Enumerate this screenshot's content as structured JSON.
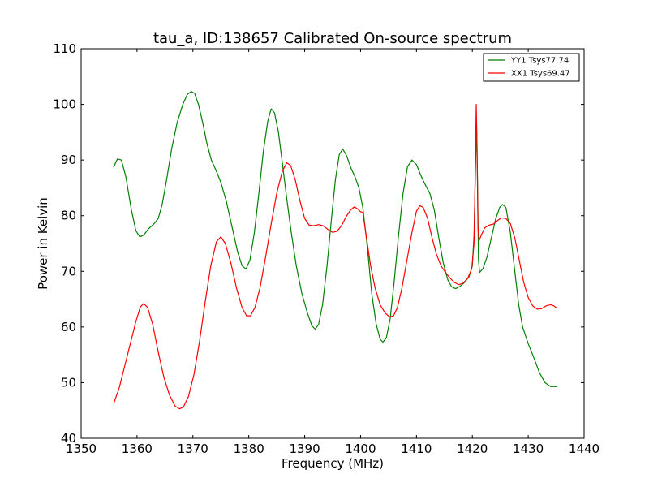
{
  "chart_data": {
    "type": "line",
    "title": "tau_a, ID:138657 Calibrated On-source spectrum",
    "xlabel": "Frequency (MHz)",
    "ylabel": "Power in Kelvin",
    "xlim": [
      1350,
      1440
    ],
    "ylim": [
      40,
      110
    ],
    "xticks": [
      1350,
      1360,
      1370,
      1380,
      1390,
      1400,
      1410,
      1420,
      1430,
      1440
    ],
    "yticks": [
      40,
      50,
      60,
      70,
      80,
      90,
      100,
      110
    ],
    "grid": false,
    "legend_position": "top-right",
    "series": [
      {
        "name": "YY1 Tsys77.74",
        "color": "#008000",
        "points": [
          [
            1355.8,
            88.7
          ],
          [
            1356.5,
            90.2
          ],
          [
            1357.2,
            90.0
          ],
          [
            1358.0,
            87.0
          ],
          [
            1359.0,
            81.0
          ],
          [
            1359.8,
            77.3
          ],
          [
            1360.5,
            76.2
          ],
          [
            1361.2,
            76.5
          ],
          [
            1362.0,
            77.6
          ],
          [
            1363.0,
            78.5
          ],
          [
            1363.8,
            79.5
          ],
          [
            1364.5,
            82.0
          ],
          [
            1365.3,
            86.5
          ],
          [
            1366.2,
            92.0
          ],
          [
            1367.2,
            96.8
          ],
          [
            1368.2,
            100.0
          ],
          [
            1369.0,
            101.8
          ],
          [
            1369.7,
            102.3
          ],
          [
            1370.3,
            102.0
          ],
          [
            1371.0,
            100.0
          ],
          [
            1371.8,
            96.5
          ],
          [
            1372.5,
            93.0
          ],
          [
            1373.3,
            90.0
          ],
          [
            1374.2,
            88.0
          ],
          [
            1375.0,
            86.0
          ],
          [
            1376.0,
            82.5
          ],
          [
            1377.0,
            78.0
          ],
          [
            1378.0,
            73.5
          ],
          [
            1378.8,
            71.0
          ],
          [
            1379.5,
            70.4
          ],
          [
            1380.2,
            72.0
          ],
          [
            1381.0,
            77.0
          ],
          [
            1381.8,
            84.0
          ],
          [
            1382.6,
            91.5
          ],
          [
            1383.4,
            97.0
          ],
          [
            1384.0,
            99.2
          ],
          [
            1384.6,
            98.5
          ],
          [
            1385.3,
            95.0
          ],
          [
            1386.0,
            89.5
          ],
          [
            1386.8,
            83.0
          ],
          [
            1387.6,
            77.0
          ],
          [
            1388.5,
            71.0
          ],
          [
            1389.5,
            66.0
          ],
          [
            1390.5,
            62.5
          ],
          [
            1391.3,
            60.2
          ],
          [
            1391.9,
            59.6
          ],
          [
            1392.5,
            60.5
          ],
          [
            1393.2,
            64.0
          ],
          [
            1394.0,
            71.0
          ],
          [
            1394.8,
            79.5
          ],
          [
            1395.5,
            86.5
          ],
          [
            1396.2,
            91.0
          ],
          [
            1396.8,
            92.0
          ],
          [
            1397.5,
            90.8
          ],
          [
            1398.3,
            88.5
          ],
          [
            1399.0,
            87.0
          ],
          [
            1399.7,
            85.0
          ],
          [
            1400.4,
            81.5
          ],
          [
            1401.2,
            74.5
          ],
          [
            1402.0,
            66.0
          ],
          [
            1402.8,
            60.5
          ],
          [
            1403.5,
            57.8
          ],
          [
            1404.0,
            57.3
          ],
          [
            1404.6,
            58.0
          ],
          [
            1405.3,
            61.5
          ],
          [
            1406.0,
            68.0
          ],
          [
            1406.8,
            76.5
          ],
          [
            1407.6,
            84.0
          ],
          [
            1408.4,
            88.8
          ],
          [
            1409.2,
            90.0
          ],
          [
            1410.0,
            89.2
          ],
          [
            1410.8,
            87.2
          ],
          [
            1411.6,
            85.5
          ],
          [
            1412.4,
            84.0
          ],
          [
            1413.2,
            81.0
          ],
          [
            1414.0,
            76.0
          ],
          [
            1414.8,
            71.5
          ],
          [
            1415.6,
            68.5
          ],
          [
            1416.3,
            67.2
          ],
          [
            1417.0,
            66.9
          ],
          [
            1417.8,
            67.3
          ],
          [
            1418.6,
            68.0
          ],
          [
            1419.4,
            69.0
          ],
          [
            1420.0,
            71.0
          ],
          [
            1420.3,
            76.5
          ],
          [
            1420.6,
            90.0
          ],
          [
            1420.75,
            96.0
          ],
          [
            1420.9,
            88.0
          ],
          [
            1421.1,
            72.0
          ],
          [
            1421.3,
            69.8
          ],
          [
            1421.9,
            70.5
          ],
          [
            1422.6,
            72.5
          ],
          [
            1423.4,
            76.0
          ],
          [
            1424.2,
            79.5
          ],
          [
            1424.9,
            81.5
          ],
          [
            1425.4,
            82.0
          ],
          [
            1426.0,
            81.5
          ],
          [
            1426.8,
            77.0
          ],
          [
            1427.6,
            70.0
          ],
          [
            1428.3,
            64.0
          ],
          [
            1429.0,
            60.0
          ],
          [
            1430.0,
            57.0
          ],
          [
            1431.0,
            54.5
          ],
          [
            1432.0,
            51.8
          ],
          [
            1433.0,
            50.0
          ],
          [
            1434.0,
            49.3
          ],
          [
            1435.2,
            49.3
          ]
        ]
      },
      {
        "name": "XX1 Tsys69.47",
        "color": "#ff0000",
        "points": [
          [
            1355.8,
            46.2
          ],
          [
            1356.8,
            49.0
          ],
          [
            1357.8,
            53.0
          ],
          [
            1358.8,
            57.0
          ],
          [
            1359.8,
            61.0
          ],
          [
            1360.6,
            63.6
          ],
          [
            1361.2,
            64.2
          ],
          [
            1361.9,
            63.5
          ],
          [
            1362.8,
            60.5
          ],
          [
            1363.8,
            55.5
          ],
          [
            1364.8,
            51.0
          ],
          [
            1365.8,
            47.8
          ],
          [
            1366.8,
            45.8
          ],
          [
            1367.6,
            45.3
          ],
          [
            1368.3,
            45.6
          ],
          [
            1369.2,
            47.5
          ],
          [
            1370.2,
            51.5
          ],
          [
            1371.2,
            57.5
          ],
          [
            1372.2,
            64.5
          ],
          [
            1373.2,
            71.0
          ],
          [
            1374.2,
            75.3
          ],
          [
            1375.0,
            76.2
          ],
          [
            1375.8,
            75.0
          ],
          [
            1376.8,
            71.5
          ],
          [
            1377.8,
            67.0
          ],
          [
            1378.8,
            63.5
          ],
          [
            1379.6,
            62.0
          ],
          [
            1380.3,
            62.0
          ],
          [
            1381.1,
            63.5
          ],
          [
            1382.0,
            67.0
          ],
          [
            1383.0,
            72.5
          ],
          [
            1384.0,
            78.5
          ],
          [
            1385.0,
            84.0
          ],
          [
            1386.0,
            88.0
          ],
          [
            1386.8,
            89.5
          ],
          [
            1387.5,
            89.0
          ],
          [
            1388.3,
            86.5
          ],
          [
            1389.2,
            82.5
          ],
          [
            1390.0,
            79.5
          ],
          [
            1390.8,
            78.3
          ],
          [
            1391.6,
            78.2
          ],
          [
            1392.5,
            78.4
          ],
          [
            1393.3,
            78.2
          ],
          [
            1394.2,
            77.5
          ],
          [
            1395.0,
            77.0
          ],
          [
            1395.8,
            77.2
          ],
          [
            1396.6,
            78.2
          ],
          [
            1397.4,
            79.8
          ],
          [
            1398.2,
            81.0
          ],
          [
            1398.9,
            81.6
          ],
          [
            1399.5,
            81.2
          ],
          [
            1400.0,
            80.7
          ],
          [
            1400.4,
            80.6
          ],
          [
            1401.0,
            76.5
          ],
          [
            1401.8,
            71.0
          ],
          [
            1402.6,
            67.0
          ],
          [
            1403.5,
            64.0
          ],
          [
            1404.4,
            62.5
          ],
          [
            1405.2,
            61.8
          ],
          [
            1405.9,
            62.0
          ],
          [
            1406.6,
            63.5
          ],
          [
            1407.4,
            67.0
          ],
          [
            1408.3,
            72.0
          ],
          [
            1409.2,
            77.0
          ],
          [
            1410.0,
            80.8
          ],
          [
            1410.6,
            81.8
          ],
          [
            1411.2,
            81.5
          ],
          [
            1412.0,
            79.5
          ],
          [
            1412.8,
            76.0
          ],
          [
            1413.6,
            73.0
          ],
          [
            1414.4,
            71.0
          ],
          [
            1415.2,
            69.8
          ],
          [
            1416.0,
            68.8
          ],
          [
            1416.8,
            68.0
          ],
          [
            1417.6,
            67.6
          ],
          [
            1418.4,
            67.9
          ],
          [
            1419.2,
            68.8
          ],
          [
            1419.9,
            70.5
          ],
          [
            1420.3,
            75.0
          ],
          [
            1420.55,
            90.0
          ],
          [
            1420.7,
            100.0
          ],
          [
            1420.85,
            92.0
          ],
          [
            1421.0,
            78.0
          ],
          [
            1421.2,
            75.5
          ],
          [
            1421.6,
            76.5
          ],
          [
            1422.2,
            77.8
          ],
          [
            1423.0,
            78.3
          ],
          [
            1423.8,
            78.5
          ],
          [
            1424.6,
            79.2
          ],
          [
            1425.2,
            79.6
          ],
          [
            1426.0,
            79.5
          ],
          [
            1426.8,
            78.6
          ],
          [
            1427.6,
            76.0
          ],
          [
            1428.4,
            72.0
          ],
          [
            1429.2,
            68.0
          ],
          [
            1430.0,
            65.3
          ],
          [
            1430.8,
            63.8
          ],
          [
            1431.6,
            63.2
          ],
          [
            1432.4,
            63.3
          ],
          [
            1433.2,
            63.8
          ],
          [
            1434.0,
            64.0
          ],
          [
            1434.6,
            63.8
          ],
          [
            1435.2,
            63.3
          ]
        ]
      }
    ]
  }
}
